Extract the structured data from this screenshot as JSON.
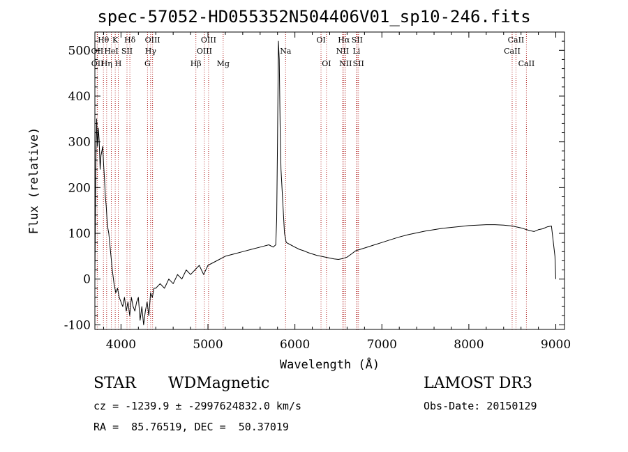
{
  "chart_data": {
    "type": "line",
    "title": "spec-57052-HD055352N504406V01_sp10-246.fits",
    "xlabel": "Wavelength (Å)",
    "ylabel": "Flux (relative)",
    "xlim": [
      3700,
      9100
    ],
    "ylim": [
      -110,
      540
    ],
    "x_ticks": [
      4000,
      5000,
      6000,
      7000,
      8000,
      9000
    ],
    "y_ticks": [
      -100,
      0,
      100,
      200,
      300,
      400,
      500
    ],
    "series": [
      {
        "name": "spectrum",
        "x": [
          3700,
          3710,
          3720,
          3730,
          3740,
          3750,
          3760,
          3770,
          3780,
          3790,
          3800,
          3810,
          3820,
          3830,
          3840,
          3850,
          3860,
          3870,
          3880,
          3890,
          3900,
          3920,
          3940,
          3960,
          3980,
          4000,
          4020,
          4040,
          4060,
          4080,
          4100,
          4120,
          4140,
          4160,
          4180,
          4200,
          4220,
          4240,
          4260,
          4280,
          4300,
          4320,
          4340,
          4360,
          4380,
          4400,
          4450,
          4500,
          4550,
          4600,
          4650,
          4700,
          4750,
          4800,
          4850,
          4900,
          4950,
          5000,
          5100,
          5200,
          5300,
          5400,
          5500,
          5600,
          5700,
          5750,
          5780,
          5790,
          5800,
          5810,
          5820,
          5830,
          5840,
          5860,
          5880,
          5900,
          5950,
          6000,
          6050,
          6100,
          6150,
          6200,
          6250,
          6300,
          6350,
          6400,
          6450,
          6500,
          6550,
          6600,
          6650,
          6700,
          6800,
          6900,
          7000,
          7100,
          7200,
          7300,
          7400,
          7500,
          7600,
          7700,
          7800,
          7900,
          8000,
          8100,
          8200,
          8300,
          8400,
          8500,
          8600,
          8700,
          8750,
          8800,
          8850,
          8900,
          8950,
          8990,
          9000
        ],
        "y": [
          0,
          240,
          350,
          290,
          330,
          300,
          240,
          270,
          280,
          290,
          250,
          220,
          180,
          160,
          130,
          110,
          100,
          80,
          60,
          40,
          20,
          -10,
          -30,
          -20,
          -40,
          -50,
          -60,
          -40,
          -70,
          -50,
          -80,
          -40,
          -60,
          -70,
          -50,
          -40,
          -90,
          -60,
          -100,
          -70,
          -50,
          -80,
          -30,
          -40,
          -20,
          -20,
          -10,
          -20,
          0,
          -10,
          10,
          0,
          20,
          10,
          20,
          30,
          10,
          30,
          40,
          50,
          55,
          60,
          65,
          70,
          75,
          70,
          75,
          130,
          300,
          520,
          480,
          330,
          240,
          170,
          100,
          80,
          75,
          70,
          65,
          62,
          58,
          55,
          52,
          50,
          48,
          46,
          44,
          43,
          45,
          48,
          55,
          62,
          68,
          74,
          80,
          86,
          92,
          97,
          101,
          105,
          108,
          111,
          113,
          115,
          117,
          118,
          119,
          119,
          118,
          116,
          112,
          106,
          104,
          108,
          110,
          114,
          116,
          50,
          0
        ]
      }
    ],
    "line_labels": [
      {
        "name": "Hθ",
        "x": 3798,
        "row": 1
      },
      {
        "name": "OII",
        "x": 3727,
        "row": 2
      },
      {
        "name": "OII",
        "x": 3729,
        "row": 3
      },
      {
        "name": "Hη",
        "x": 3835,
        "row": 3
      },
      {
        "name": "HeI",
        "x": 3889,
        "row": 2
      },
      {
        "name": "K",
        "x": 3934,
        "row": 1
      },
      {
        "name": "H",
        "x": 3969,
        "row": 3
      },
      {
        "name": "SII",
        "x": 4069,
        "row": 2
      },
      {
        "name": "Hδ",
        "x": 4102,
        "row": 1
      },
      {
        "name": "OIII",
        "x": 4363,
        "row": 1
      },
      {
        "name": "Hγ",
        "x": 4341,
        "row": 2
      },
      {
        "name": "G",
        "x": 4305,
        "row": 3
      },
      {
        "name": "Hβ",
        "x": 4861,
        "row": 3
      },
      {
        "name": "OIII",
        "x": 4959,
        "row": 2
      },
      {
        "name": "OIII",
        "x": 5007,
        "row": 1
      },
      {
        "name": "Mg",
        "x": 5175,
        "row": 3
      },
      {
        "name": "Na",
        "x": 5893,
        "row": 2
      },
      {
        "name": "OI",
        "x": 6300,
        "row": 1
      },
      {
        "name": "OI",
        "x": 6363,
        "row": 3
      },
      {
        "name": "NII",
        "x": 6548,
        "row": 2
      },
      {
        "name": "NII",
        "x": 6583,
        "row": 3
      },
      {
        "name": "Hα",
        "x": 6563,
        "row": 1
      },
      {
        "name": "SII",
        "x": 6716,
        "row": 1
      },
      {
        "name": "Li",
        "x": 6708,
        "row": 2
      },
      {
        "name": "SII",
        "x": 6731,
        "row": 3
      },
      {
        "name": "CaII",
        "x": 8498,
        "row": 2
      },
      {
        "name": "CaII",
        "x": 8542,
        "row": 1
      },
      {
        "name": "CaII",
        "x": 8662,
        "row": 3
      }
    ]
  },
  "info": {
    "class_label": "STAR",
    "subclass": "WDMagnetic",
    "survey": "LAMOST DR3",
    "cz_line": "cz = -1239.9 ± -2997624832.0 km/s",
    "obs_date_line": "Obs-Date: 20150129",
    "radec_line": "RA =  85.76519, DEC =  50.37019"
  },
  "colors": {
    "axis": "#000000",
    "spectrum": "#000000",
    "line_marker": "#b22222"
  }
}
